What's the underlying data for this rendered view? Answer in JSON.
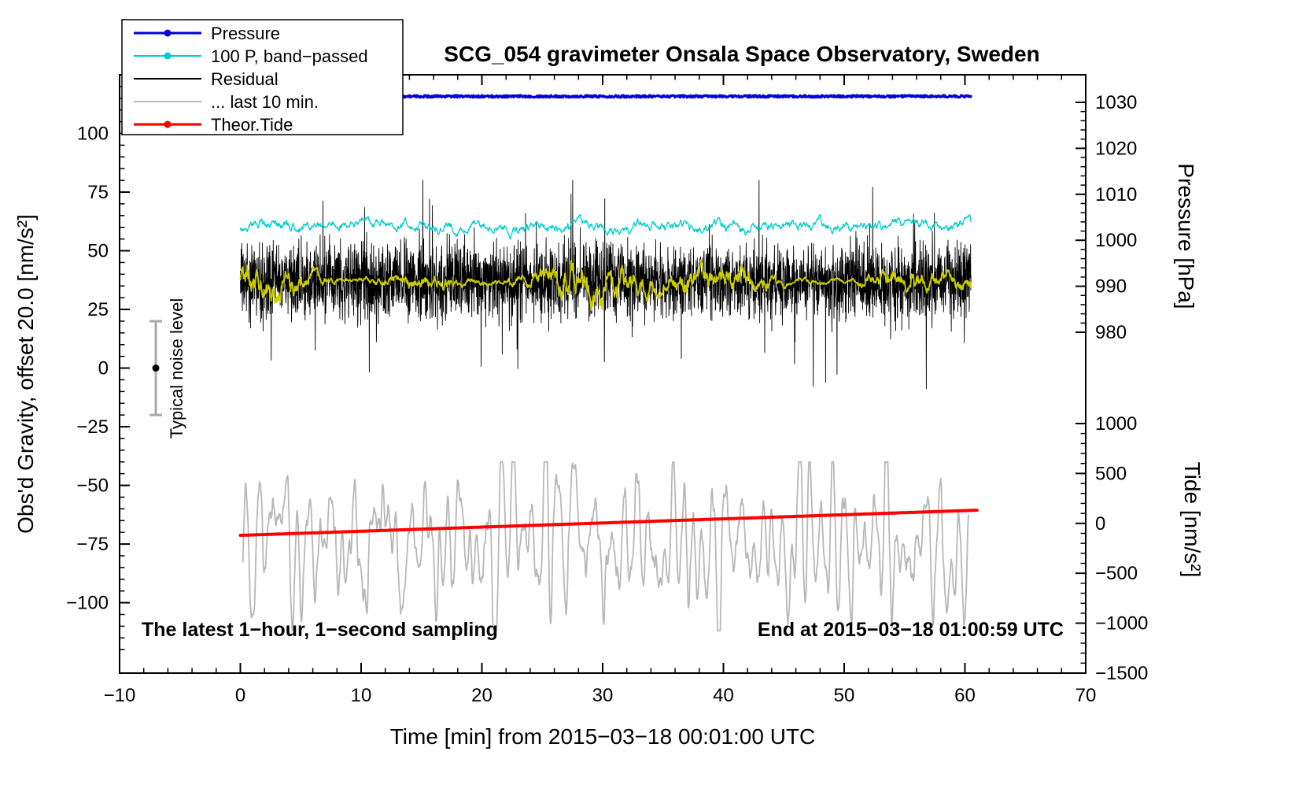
{
  "chart_data": {
    "type": "line",
    "title": "SCG_054 gravimeter Onsala Space Observatory, Sweden",
    "xlabel": "Time [min] from 2015−03−18 00:01:00 UTC",
    "annotations": {
      "sampling": "The latest 1−hour, 1−second sampling",
      "end_time": "End at 2015−03−18 01:00:59 UTC",
      "noise_label": "Typical noise level"
    },
    "legend_position": "top-left",
    "grid": false,
    "axes": {
      "x": {
        "min": -10,
        "max": 70,
        "major_ticks": [
          -10,
          0,
          10,
          20,
          30,
          40,
          50,
          60,
          70
        ],
        "minor_step": 2
      },
      "y_left": {
        "label": "Obs'd Gravity, offset 20.0 [nm/s²]",
        "min": -130,
        "max": 125,
        "major_ticks": [
          100,
          75,
          50,
          25,
          0,
          -25,
          -50,
          -75,
          -100
        ],
        "minor_step": 5
      },
      "y_pressure": {
        "label": "Pressure [hPa]",
        "min": 980,
        "max": 1030,
        "major_ticks": [
          1030,
          1020,
          1010,
          1000,
          990,
          980
        ],
        "minor_step": 2
      },
      "y_tide": {
        "label": "Tide [nm/s²]",
        "min": -1500,
        "max": 1000,
        "major_ticks": [
          1000,
          500,
          0,
          -500,
          -1000,
          -1500
        ],
        "minor_step": 100
      }
    },
    "noise_indicator": {
      "x": -7,
      "center": 0,
      "half_range": 20,
      "bar_color": "#aaaaaa",
      "dot_color": "#000000"
    },
    "series": [
      {
        "id": "pressure",
        "name": "Pressure",
        "color": "#0000dd",
        "axis": "pressure",
        "in_legend": true,
        "marker": true,
        "mean": 1031.3,
        "noise_hpa": 0.25,
        "x_start": 0,
        "x_end": 60.5,
        "width": 3,
        "points": 1400
      },
      {
        "id": "band_passed",
        "name": "100 P, band−passed",
        "color": "#00cccc",
        "axis": "gravity",
        "in_legend": true,
        "marker": true,
        "mean": 60.5,
        "amplitude": 1.6,
        "x_start": 0,
        "x_end": 60.5,
        "width": 1.3,
        "points": 1400
      },
      {
        "id": "residual",
        "name": "Residual",
        "color": "#000000",
        "axis": "gravity",
        "in_legend": true,
        "marker": false,
        "mean": 37,
        "amplitude": 8,
        "spike_amplitude": 40,
        "x_start": 0,
        "x_end": 60.5,
        "width": 0.9,
        "points": 3600
      },
      {
        "id": "residual_smooth",
        "name": "residual-smoothed",
        "color": "#cccc00",
        "axis": "gravity",
        "in_legend": false,
        "marker": false,
        "mean": 37,
        "amplitude": 2.3,
        "x_start": 0,
        "x_end": 60.5,
        "width": 1.8,
        "points": 1800
      },
      {
        "id": "last10",
        "name": "... last 10 min.",
        "color": "#b8b8b8",
        "axis": "gravity",
        "in_legend": true,
        "marker": false,
        "mean": -75,
        "amplitude": 17,
        "period_min": 1.05,
        "x_start": 0.2,
        "x_end": 60.3,
        "width": 1.8,
        "points": 1600
      },
      {
        "id": "tide",
        "name": "Theor.Tide",
        "color": "#ff0000",
        "axis": "tide",
        "in_legend": true,
        "marker": true,
        "start": -120,
        "end": 132,
        "x_start": 0,
        "x_end": 61,
        "width": 4,
        "points": 400
      }
    ]
  }
}
